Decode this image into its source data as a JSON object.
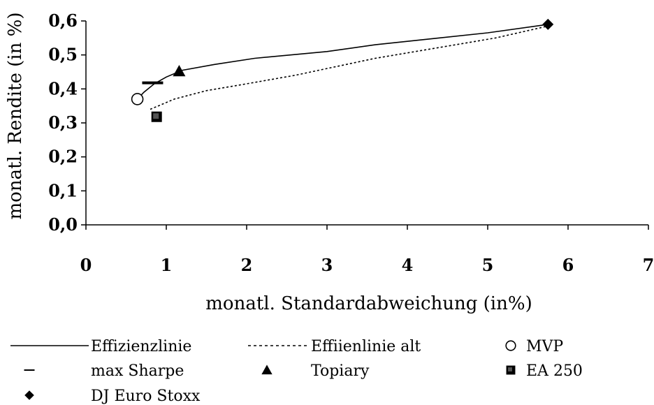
{
  "chart_data": {
    "type": "scatter",
    "xlabel": "monatl. Standardabweichung (in%)",
    "ylabel": "monatl. Rendite (in %)",
    "xlim": [
      0,
      7
    ],
    "ylim": [
      0,
      0.6
    ],
    "x_ticks": [
      "0",
      "1",
      "2",
      "3",
      "4",
      "5",
      "6",
      "7"
    ],
    "y_ticks": [
      "0,0",
      "0,1",
      "0,2",
      "0,3",
      "0,4",
      "0,5",
      "0,6"
    ],
    "grid": false,
    "legend_position": "bottom",
    "series": [
      {
        "name": "Effizienzlinie",
        "kind": "line",
        "style": "solid",
        "color": "#000000",
        "points": [
          [
            0.64,
            0.37
          ],
          [
            0.72,
            0.39
          ],
          [
            0.85,
            0.415
          ],
          [
            1.0,
            0.435
          ],
          [
            1.2,
            0.455
          ],
          [
            1.6,
            0.472
          ],
          [
            2.1,
            0.49
          ],
          [
            3.0,
            0.51
          ],
          [
            3.6,
            0.53
          ],
          [
            4.4,
            0.55
          ],
          [
            5.0,
            0.565
          ],
          [
            5.75,
            0.59
          ]
        ]
      },
      {
        "name": "Effiienlinie alt",
        "kind": "line",
        "style": "dotted",
        "color": "#000000",
        "points": [
          [
            0.8,
            0.34
          ],
          [
            0.9,
            0.35
          ],
          [
            1.1,
            0.37
          ],
          [
            1.5,
            0.395
          ],
          [
            2.0,
            0.415
          ],
          [
            2.6,
            0.44
          ],
          [
            3.1,
            0.465
          ],
          [
            3.6,
            0.49
          ],
          [
            4.1,
            0.51
          ],
          [
            4.6,
            0.53
          ],
          [
            5.1,
            0.55
          ],
          [
            5.75,
            0.585
          ]
        ]
      },
      {
        "name": "MVP",
        "kind": "marker",
        "marker": "circle-open",
        "points": [
          [
            0.64,
            0.37
          ]
        ]
      },
      {
        "name": "max Sharpe",
        "kind": "marker",
        "marker": "dash",
        "points": [
          [
            0.83,
            0.418
          ]
        ]
      },
      {
        "name": "Topiary",
        "kind": "marker",
        "marker": "triangle",
        "points": [
          [
            1.16,
            0.452
          ]
        ]
      },
      {
        "name": "EA 250",
        "kind": "marker",
        "marker": "square",
        "points": [
          [
            0.88,
            0.318
          ]
        ]
      },
      {
        "name": "DJ Euro Stoxx",
        "kind": "marker",
        "marker": "diamond",
        "points": [
          [
            5.75,
            0.59
          ]
        ]
      }
    ]
  }
}
